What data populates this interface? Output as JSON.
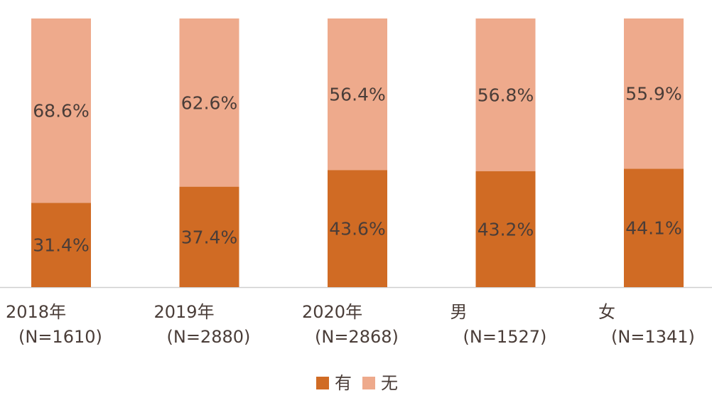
{
  "chart_data": {
    "type": "stacked_bar",
    "categories": [
      [
        "2018年",
        "(N=1610)"
      ],
      [
        "2019年",
        "(N=2880)"
      ],
      [
        "2020年",
        "(N=2868)"
      ],
      [
        "男",
        "(N=1527)"
      ],
      [
        "女",
        "(N=1341)"
      ]
    ],
    "series": [
      {
        "name": "有",
        "color": "#d06b24",
        "values": [
          31.4,
          37.4,
          43.6,
          43.2,
          44.1
        ],
        "value_labels": [
          "31.4%",
          "37.4%",
          "43.6%",
          "43.2%",
          "44.1%"
        ]
      },
      {
        "name": "无",
        "color": "#eeaa8c",
        "values": [
          68.6,
          62.6,
          56.4,
          56.8,
          55.9
        ],
        "value_labels": [
          "68.6%",
          "62.6%",
          "56.4%",
          "56.8%",
          "55.9%"
        ]
      }
    ],
    "ylim": [
      0,
      100
    ]
  }
}
